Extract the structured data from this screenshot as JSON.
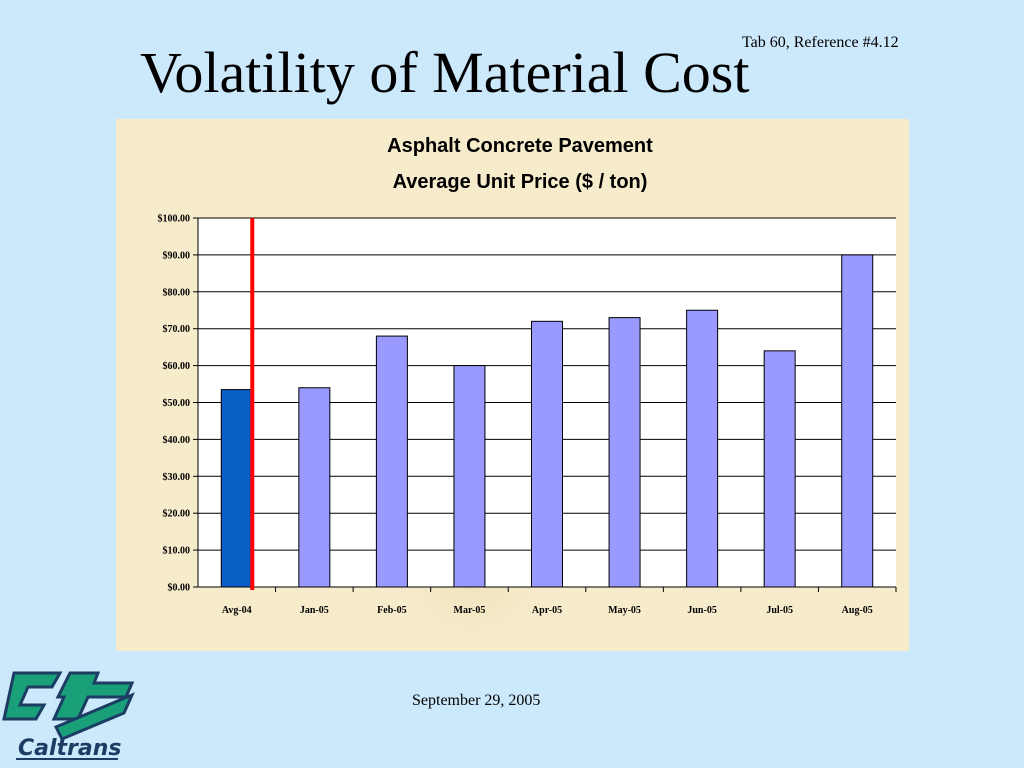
{
  "slide": {
    "reference": "Tab 60, Reference #4.12",
    "title": "Volatility of Material Cost",
    "date": "September 29, 2005",
    "logo_text": "Caltrans"
  },
  "colors": {
    "background": "#cce8fb",
    "panel": "#f6ebcb",
    "bar_primary": "#0a5fc6",
    "bar_secondary": "#9999ff",
    "divider": "#ff0000"
  },
  "chart_data": {
    "type": "bar",
    "title_lines": [
      "Asphalt Concrete Pavement",
      "Average Unit Price ($ / ton)"
    ],
    "categories": [
      "Avg-04",
      "Jan-05",
      "Feb-05",
      "Mar-05",
      "Apr-05",
      "May-05",
      "Jun-05",
      "Jul-05",
      "Aug-05"
    ],
    "values": [
      53.5,
      54,
      68,
      60,
      72,
      73,
      75,
      64,
      90
    ],
    "bar_colors": [
      "#0a5fc6",
      "#9999ff",
      "#9999ff",
      "#9999ff",
      "#9999ff",
      "#9999ff",
      "#9999ff",
      "#9999ff",
      "#9999ff"
    ],
    "y_ticks": [
      "$0.00",
      "$10.00",
      "$20.00",
      "$30.00",
      "$40.00",
      "$50.00",
      "$60.00",
      "$70.00",
      "$80.00",
      "$90.00",
      "$100.00"
    ],
    "ylim": [
      0,
      100
    ],
    "y_step": 10,
    "grid": true,
    "divider_after_category": "Avg-04"
  }
}
